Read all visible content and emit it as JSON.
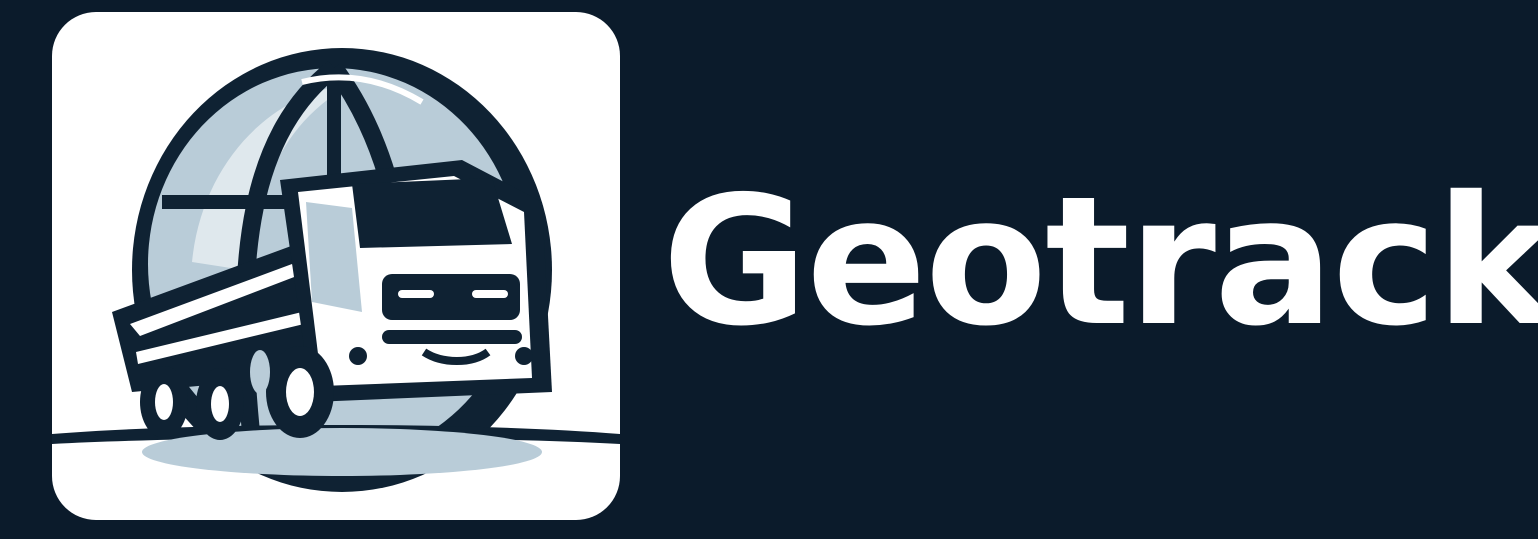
{
  "brand": {
    "name": "Geotrack"
  },
  "logo": {
    "icon": "globe-truck-icon",
    "colors": {
      "background": "#0b1b2b",
      "tile": "#ffffff",
      "ink": "#0f2233",
      "globe_tint": "#b9ccd8"
    }
  }
}
